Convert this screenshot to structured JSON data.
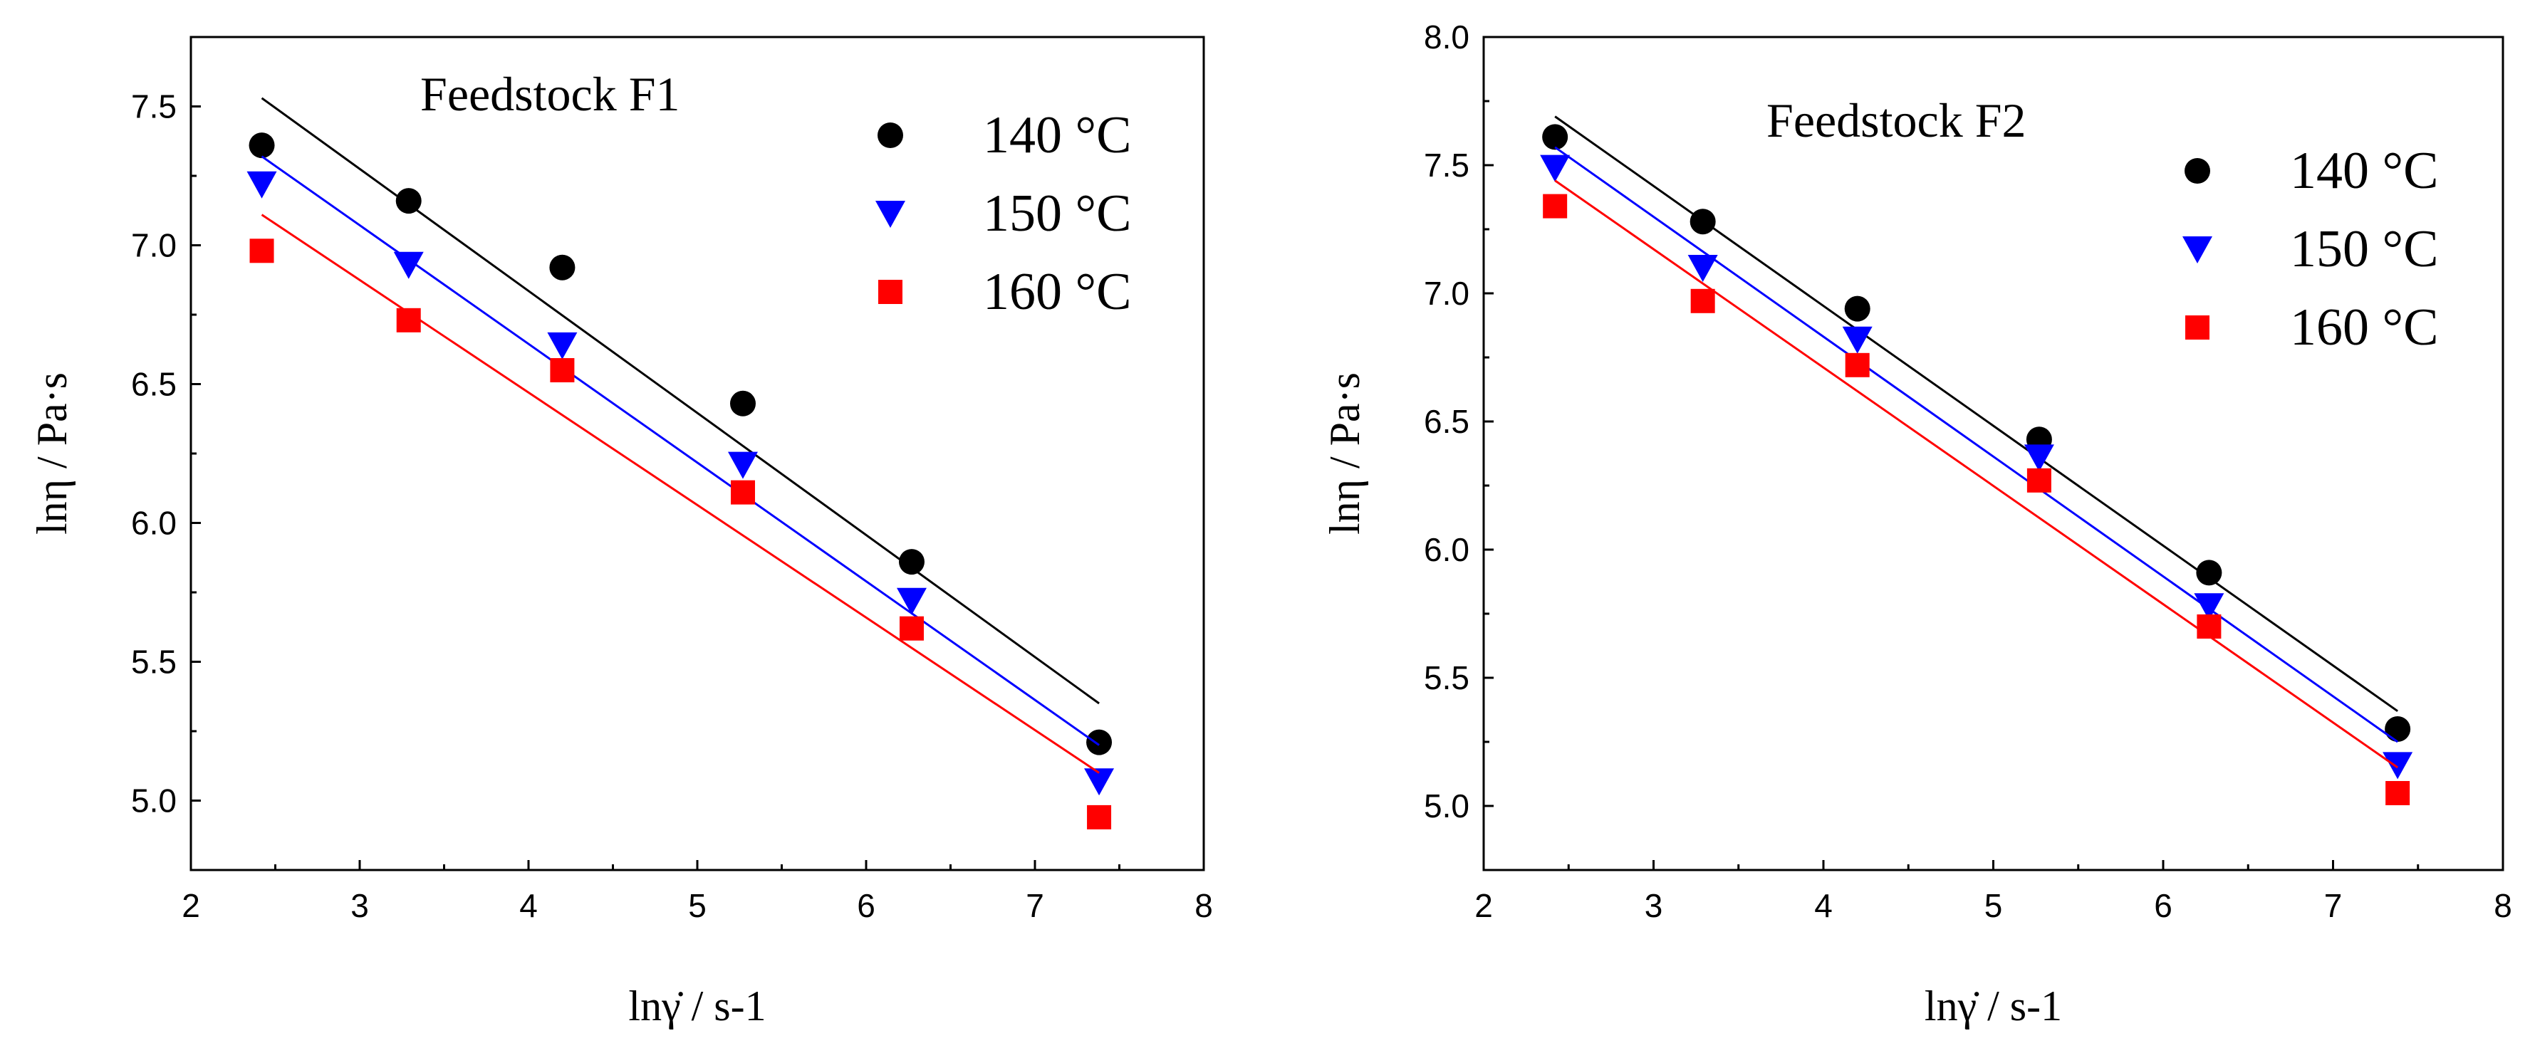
{
  "chart_data": [
    {
      "type": "scatter",
      "title": "Feedstock F1",
      "xlabel": "lnγ̇ / s-1",
      "ylabel": "lnη / Pa·s",
      "xlim": [
        2,
        8
      ],
      "ylim": [
        4.75,
        7.75
      ],
      "xticks": [
        "2",
        "3",
        "4",
        "5",
        "6",
        "7",
        "8"
      ],
      "yticks": [
        "5.0",
        "5.5",
        "6.0",
        "6.5",
        "7.0",
        "7.5"
      ],
      "legend_position": "top-right",
      "grid": false,
      "series": [
        {
          "name": "140 °C",
          "color": "#000000",
          "marker": "circle",
          "points": [
            [
              2.42,
              7.36
            ],
            [
              3.29,
              7.16
            ],
            [
              4.2,
              6.92
            ],
            [
              5.27,
              6.43
            ],
            [
              6.27,
              5.86
            ],
            [
              7.38,
              5.21
            ]
          ],
          "fit": [
            [
              2.42,
              7.53
            ],
            [
              7.38,
              5.35
            ]
          ]
        },
        {
          "name": "150 °C",
          "color": "#0000ff",
          "marker": "triangle-down",
          "points": [
            [
              2.42,
              7.22
            ],
            [
              3.29,
              6.93
            ],
            [
              4.2,
              6.64
            ],
            [
              5.27,
              6.21
            ],
            [
              6.27,
              5.72
            ],
            [
              7.38,
              5.07
            ]
          ],
          "fit": [
            [
              2.42,
              7.32
            ],
            [
              7.38,
              5.2
            ]
          ]
        },
        {
          "name": "160 °C",
          "color": "#ff0000",
          "marker": "square",
          "points": [
            [
              2.42,
              6.98
            ],
            [
              3.29,
              6.73
            ],
            [
              4.2,
              6.55
            ],
            [
              5.27,
              6.11
            ],
            [
              6.27,
              5.62
            ],
            [
              7.38,
              4.94
            ]
          ],
          "fit": [
            [
              2.42,
              7.11
            ],
            [
              7.38,
              5.1
            ]
          ]
        }
      ]
    },
    {
      "type": "scatter",
      "title": "Feedstock F2",
      "xlabel": "lnγ̇ / s-1",
      "ylabel": "lnη / Pa·s",
      "xlim": [
        2,
        8
      ],
      "ylim": [
        4.75,
        8.0
      ],
      "xticks": [
        "2",
        "3",
        "4",
        "5",
        "6",
        "7",
        "8"
      ],
      "yticks": [
        "5.0",
        "5.5",
        "6.0",
        "6.5",
        "7.0",
        "7.5",
        "8.0"
      ],
      "legend_position": "top-right",
      "grid": false,
      "series": [
        {
          "name": "140 °C",
          "color": "#000000",
          "marker": "circle",
          "points": [
            [
              2.42,
              7.61
            ],
            [
              3.29,
              7.28
            ],
            [
              4.2,
              6.94
            ],
            [
              5.27,
              6.43
            ],
            [
              6.27,
              5.91
            ],
            [
              7.38,
              5.3
            ]
          ],
          "fit": [
            [
              2.42,
              7.69
            ],
            [
              7.38,
              5.37
            ]
          ]
        },
        {
          "name": "150 °C",
          "color": "#0000ff",
          "marker": "triangle-down",
          "points": [
            [
              2.42,
              7.49
            ],
            [
              3.29,
              7.1
            ],
            [
              4.2,
              6.82
            ],
            [
              5.27,
              6.36
            ],
            [
              6.27,
              5.78
            ],
            [
              7.38,
              5.16
            ]
          ],
          "fit": [
            [
              2.42,
              7.57
            ],
            [
              7.38,
              5.25
            ]
          ]
        },
        {
          "name": "160 °C",
          "color": "#ff0000",
          "marker": "square",
          "points": [
            [
              2.42,
              7.34
            ],
            [
              3.29,
              6.97
            ],
            [
              4.2,
              6.72
            ],
            [
              5.27,
              6.27
            ],
            [
              6.27,
              5.7
            ],
            [
              7.38,
              5.05
            ]
          ],
          "fit": [
            [
              2.42,
              7.44
            ],
            [
              7.38,
              5.15
            ]
          ]
        }
      ]
    }
  ]
}
